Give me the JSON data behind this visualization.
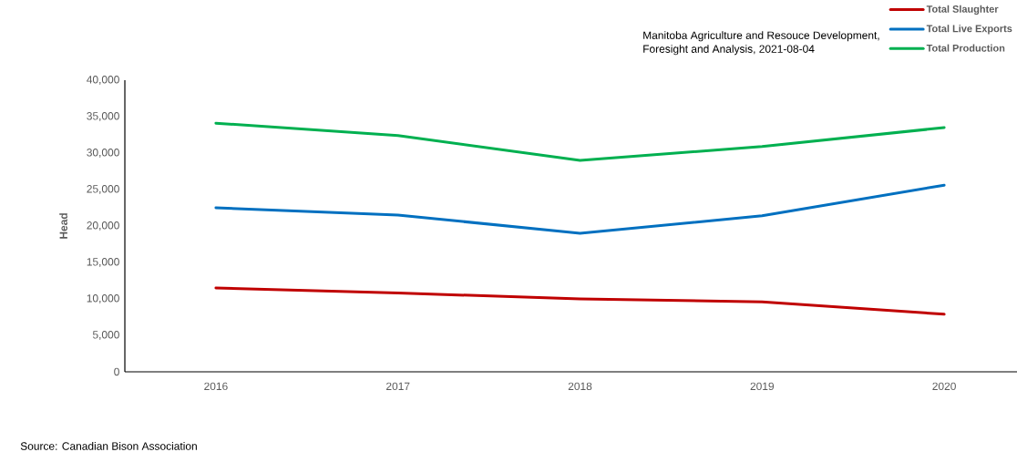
{
  "chart_data": {
    "type": "line",
    "ylabel": "Head",
    "categories": [
      "2016",
      "2017",
      "2018",
      "2019",
      "2020"
    ],
    "series": [
      {
        "name": "Total Slaughter",
        "color": "#c00000",
        "values": [
          11500,
          10800,
          10000,
          9600,
          7900
        ]
      },
      {
        "name": "Total Live Exports",
        "color": "#0070c0",
        "values": [
          22500,
          21500,
          19000,
          21400,
          25600
        ]
      },
      {
        "name": "Total Production",
        "color": "#00b050",
        "values": [
          34100,
          32400,
          29000,
          30900,
          33500
        ]
      }
    ],
    "ylim": [
      0,
      40000
    ],
    "yticks": [
      0,
      {
        "value": 5000,
        "label": "5,000"
      },
      {
        "value": 10000,
        "label": "10,000"
      },
      {
        "value": 15000,
        "label": "15,000"
      },
      {
        "value": 20000,
        "label": "20,000"
      },
      {
        "value": 25000,
        "label": "25,000"
      },
      {
        "value": 30000,
        "label": "30,000"
      },
      {
        "value": 35000,
        "label": "35,000"
      },
      {
        "value": 40000,
        "label": "40,000"
      }
    ],
    "grid": false,
    "legend": "top right",
    "annotations": [
      "Manitoba Agriculture and Resouce Development,\nForesight and Analysis, 2021-08-04",
      "Source: Canadian Bison Association"
    ]
  }
}
